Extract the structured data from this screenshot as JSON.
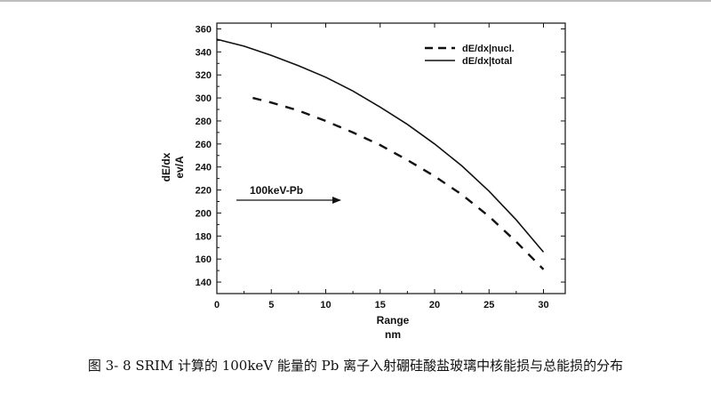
{
  "caption": "图 3- 8 SRIM 计算的 100keV 能量的 Pb 离子入射硼硅酸盐玻璃中核能损与总能损的分布",
  "chart_data": {
    "type": "line",
    "xlabel": "Range",
    "xunit": "nm",
    "ylabel": "dE/dx",
    "yunit": "ev/A",
    "xlim": [
      0,
      32
    ],
    "ylim": [
      130,
      365
    ],
    "xticks": [
      0,
      5,
      10,
      15,
      20,
      25,
      30
    ],
    "yticks": [
      140,
      160,
      180,
      200,
      220,
      240,
      260,
      280,
      300,
      320,
      340,
      360
    ],
    "grid": false,
    "legend_position": "top-right",
    "annotation": "100keV-Pb",
    "series": [
      {
        "name": "dE/dx|nucl.",
        "style": "dashed",
        "color": "#111111",
        "x": [
          3.3,
          5.0,
          7.5,
          10.0,
          12.5,
          15.0,
          17.5,
          20.0,
          22.5,
          25.0,
          27.5,
          30.0
        ],
        "y": [
          300,
          296,
          289,
          280,
          270,
          259,
          246,
          232,
          216,
          197,
          175,
          151
        ]
      },
      {
        "name": "dE/dx|total",
        "style": "solid",
        "color": "#111111",
        "x": [
          0,
          2.5,
          5.0,
          7.5,
          10.0,
          12.5,
          15.0,
          17.5,
          20.0,
          22.5,
          25.0,
          27.5,
          30.0
        ],
        "y": [
          351,
          345,
          337,
          328,
          318,
          306,
          292,
          277,
          260,
          241,
          219,
          194,
          166
        ]
      }
    ]
  }
}
